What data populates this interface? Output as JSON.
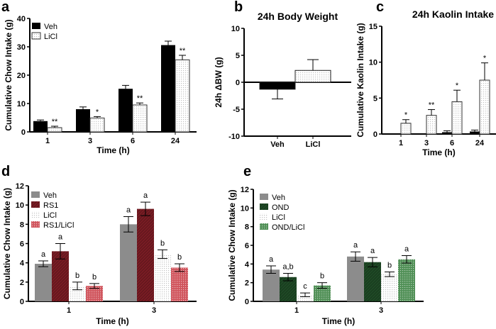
{
  "chart_data": [
    {
      "panel": "a",
      "type": "bar",
      "title": "",
      "xlabel": "Time (h)",
      "ylabel": "Cumulative Chow Intake (g)",
      "ylim": [
        0,
        40
      ],
      "yticks": [
        0,
        10,
        20,
        30,
        40
      ],
      "categories": [
        "1",
        "3",
        "6",
        "24"
      ],
      "series": [
        {
          "name": "Veh",
          "fill": "solid",
          "color": "#000000",
          "values": [
            3.8,
            8.0,
            15.2,
            30.6
          ],
          "errors": [
            0.4,
            0.8,
            1.2,
            1.4
          ]
        },
        {
          "name": "LiCl",
          "fill": "dots",
          "color": "#e6e6e6",
          "values": [
            1.5,
            4.9,
            9.5,
            25.4
          ],
          "errors": [
            0.5,
            0.5,
            0.7,
            1.6
          ],
          "annotations": [
            "**",
            "*",
            "**",
            "**"
          ]
        }
      ],
      "legend": "top-left"
    },
    {
      "panel": "b",
      "type": "bar",
      "title": "24h Body Weight",
      "xlabel": "",
      "ylabel": "24h ΔBW (g)",
      "ylim": [
        -10,
        10
      ],
      "yticks": [
        -10,
        -5,
        0,
        5,
        10
      ],
      "categories": [
        "Veh",
        "LiCl"
      ],
      "series": [
        {
          "name": "24h ΔBW",
          "values": [
            -1.3,
            2.2
          ],
          "errors": [
            1.8,
            2.0
          ],
          "fills": [
            "solid",
            "dots"
          ]
        }
      ]
    },
    {
      "panel": "c",
      "type": "bar",
      "title": "24h Kaolin Intake",
      "xlabel": "Time (h)",
      "ylabel": "Cumulative Kaolin Intake (g)",
      "ylim": [
        0,
        15
      ],
      "yticks": [
        0,
        5,
        10,
        15
      ],
      "categories": [
        "1",
        "3",
        "6",
        "24"
      ],
      "series": [
        {
          "name": "Veh",
          "fill": "solid",
          "color": "#000000",
          "values": [
            0,
            0.05,
            0.25,
            0.35
          ],
          "errors": [
            0,
            0,
            0.2,
            0.2
          ]
        },
        {
          "name": "LiCl",
          "fill": "dots",
          "color": "#e6e6e6",
          "values": [
            1.5,
            2.6,
            4.5,
            7.5
          ],
          "errors": [
            0.5,
            0.8,
            1.6,
            2.4
          ],
          "annotations": [
            "*",
            "**",
            "*",
            "*"
          ]
        }
      ]
    },
    {
      "panel": "d",
      "type": "bar",
      "title": "",
      "xlabel": "Time (h)",
      "ylabel": "Cumulative Chow Intake (g)",
      "ylim": [
        0,
        12
      ],
      "yticks": [
        0,
        2,
        4,
        6,
        8,
        10,
        12
      ],
      "categories": [
        "1",
        "3"
      ],
      "series": [
        {
          "name": "Veh",
          "fill": "solid",
          "color": "#8c8c8c",
          "values": [
            3.9,
            8.0
          ],
          "errors": [
            0.3,
            0.8
          ],
          "annotations": [
            "a",
            "a"
          ]
        },
        {
          "name": "RS1",
          "fill": "hatch",
          "color": "#7a1c24",
          "values": [
            5.2,
            9.6
          ],
          "errors": [
            0.8,
            0.7
          ],
          "annotations": [
            "a",
            "a"
          ]
        },
        {
          "name": "LiCl",
          "fill": "dots",
          "color": "#eeeeee",
          "values": [
            1.6,
            4.9
          ],
          "errors": [
            0.4,
            0.45
          ],
          "annotations": [
            "b",
            "b"
          ]
        },
        {
          "name": "RS1/LiCl",
          "fill": "dots",
          "color": "#d0545c",
          "values": [
            1.6,
            3.5
          ],
          "errors": [
            0.25,
            0.4
          ],
          "annotations": [
            "b",
            "b"
          ]
        }
      ],
      "legend": "top-left"
    },
    {
      "panel": "e",
      "type": "bar",
      "title": "",
      "xlabel": "Time (h)",
      "ylabel": "Cumulative Chow Intake (g)",
      "ylim": [
        0,
        12
      ],
      "yticks": [
        0,
        2,
        4,
        6,
        8,
        10,
        12
      ],
      "categories": [
        "1",
        "3"
      ],
      "series": [
        {
          "name": "Veh",
          "fill": "solid",
          "color": "#8c8c8c",
          "values": [
            3.4,
            4.8
          ],
          "errors": [
            0.4,
            0.5
          ],
          "annotations": [
            "a",
            "a"
          ]
        },
        {
          "name": "OND",
          "fill": "hatch",
          "color": "#1f4a26",
          "values": [
            2.6,
            4.2
          ],
          "errors": [
            0.4,
            0.5
          ],
          "annotations": [
            "a,b",
            "a"
          ]
        },
        {
          "name": "LiCl",
          "fill": "dots",
          "color": "#eeeeee",
          "values": [
            0.7,
            2.9
          ],
          "errors": [
            0.2,
            0.25
          ],
          "annotations": [
            "c",
            "b"
          ]
        },
        {
          "name": "OND/LiCl",
          "fill": "dots",
          "color": "#4f8f55",
          "values": [
            1.7,
            4.5
          ],
          "errors": [
            0.3,
            0.4
          ],
          "annotations": [
            "b",
            "a"
          ]
        }
      ],
      "legend": "top-left"
    }
  ]
}
